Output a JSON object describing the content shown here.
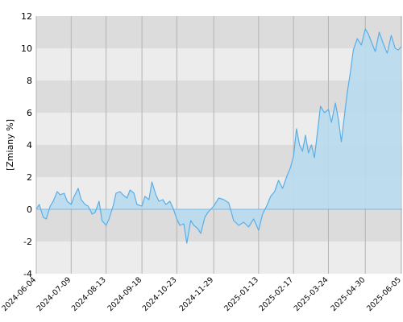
{
  "chart_data": {
    "type": "area",
    "ylabel": "[Zmiany %]",
    "ylim": [
      -4,
      12
    ],
    "y_ticks": [
      "-4",
      "-2",
      "0",
      "2",
      "4",
      "6",
      "8",
      "10",
      "12"
    ],
    "x_range": [
      "2024-06-04",
      "2025-06-06"
    ],
    "x_ticks": [
      "2024-06-04",
      "2024-07-09",
      "2024-08-13",
      "2024-09-18",
      "2024-10-23",
      "2024-11-29",
      "2025-01-13",
      "2025-02-17",
      "2025-03-24",
      "2025-04-30",
      "2025-06-05"
    ],
    "grid": "horizontal bands + vertical gridlines",
    "colors": {
      "line": "#5aaee6",
      "fill": "#b8dcef",
      "band_dark": "#dcdcdc",
      "band_light": "#ececec",
      "vgrid": "#b4b4b4"
    },
    "series": [
      {
        "x": [
          "2024-06-04",
          "2024-06-07",
          "2024-06-11",
          "2024-06-14",
          "2024-06-18",
          "2024-06-21",
          "2024-06-25",
          "2024-06-28",
          "2024-07-02",
          "2024-07-05",
          "2024-07-09",
          "2024-07-12",
          "2024-07-16",
          "2024-07-19",
          "2024-07-23",
          "2024-07-26",
          "2024-07-30",
          "2024-08-02",
          "2024-08-06",
          "2024-08-09",
          "2024-08-13",
          "2024-08-16",
          "2024-08-20",
          "2024-08-23",
          "2024-08-27",
          "2024-08-30",
          "2024-09-03",
          "2024-09-06",
          "2024-09-10",
          "2024-09-13",
          "2024-09-18",
          "2024-09-21",
          "2024-09-25",
          "2024-09-28",
          "2024-10-02",
          "2024-10-05",
          "2024-10-09",
          "2024-10-12",
          "2024-10-16",
          "2024-10-19",
          "2024-10-23",
          "2024-10-26",
          "2024-10-30",
          "2024-11-02",
          "2024-11-06",
          "2024-11-09",
          "2024-11-13",
          "2024-11-16",
          "2024-11-20",
          "2024-11-23",
          "2024-11-29",
          "2024-12-04",
          "2024-12-09",
          "2024-12-14",
          "2024-12-19",
          "2024-12-24",
          "2024-12-29",
          "2025-01-03",
          "2025-01-08",
          "2025-01-13",
          "2025-01-17",
          "2025-01-21",
          "2025-01-25",
          "2025-01-29",
          "2025-02-02",
          "2025-02-06",
          "2025-02-10",
          "2025-02-14",
          "2025-02-17",
          "2025-02-20",
          "2025-02-23",
          "2025-02-26",
          "2025-03-01",
          "2025-03-04",
          "2025-03-07",
          "2025-03-10",
          "2025-03-13",
          "2025-03-16",
          "2025-03-20",
          "2025-03-24",
          "2025-03-27",
          "2025-03-31",
          "2025-04-03",
          "2025-04-06",
          "2025-04-09",
          "2025-04-12",
          "2025-04-15",
          "2025-04-18",
          "2025-04-22",
          "2025-04-26",
          "2025-04-30",
          "2025-05-03",
          "2025-05-06",
          "2025-05-10",
          "2025-05-14",
          "2025-05-18",
          "2025-05-22",
          "2025-05-26",
          "2025-05-30",
          "2025-06-02",
          "2025-06-05"
        ],
        "values": [
          0.0,
          0.3,
          -0.5,
          -0.6,
          0.2,
          0.5,
          1.1,
          0.9,
          1.0,
          0.5,
          0.3,
          0.8,
          1.3,
          0.6,
          0.3,
          0.2,
          -0.3,
          -0.2,
          0.5,
          -0.7,
          -1.0,
          -0.6,
          0.2,
          1.0,
          1.1,
          0.9,
          0.7,
          1.2,
          1.0,
          0.3,
          0.2,
          0.8,
          0.6,
          1.7,
          0.9,
          0.5,
          0.6,
          0.3,
          0.5,
          0.1,
          -0.6,
          -1.0,
          -0.9,
          -2.1,
          -0.7,
          -1.0,
          -1.2,
          -1.5,
          -0.5,
          -0.2,
          0.2,
          0.7,
          0.6,
          0.4,
          -0.7,
          -1.0,
          -0.8,
          -1.1,
          -0.6,
          -1.3,
          -0.3,
          0.2,
          0.8,
          1.1,
          1.8,
          1.3,
          2.0,
          2.6,
          3.3,
          5.0,
          4.0,
          3.6,
          4.6,
          3.5,
          4.0,
          3.2,
          4.8,
          6.4,
          6.0,
          6.2,
          5.4,
          6.6,
          5.6,
          4.2,
          5.8,
          7.3,
          8.5,
          9.9,
          10.6,
          10.2,
          11.2,
          10.9,
          10.4,
          9.8,
          11.0,
          10.3,
          9.7,
          10.8,
          10.0,
          9.9,
          10.1
        ]
      }
    ]
  }
}
